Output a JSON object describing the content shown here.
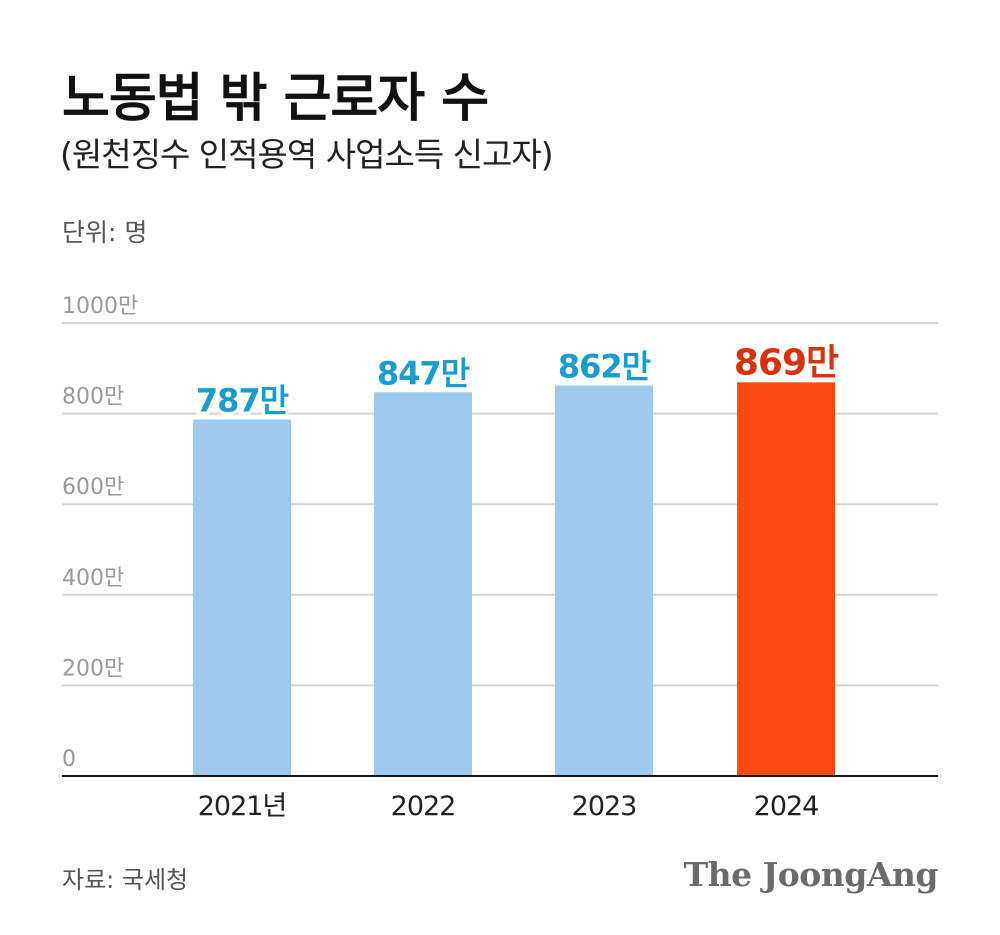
{
  "chart_data": {
    "type": "bar",
    "title": "노동법 밖 근로자 수",
    "subtitle": "(원천징수 인적용역 사업소득 신고자)",
    "unit_label": "단위: 명",
    "categories": [
      "2021년",
      "2022",
      "2023",
      "2024"
    ],
    "values": [
      787,
      847,
      862,
      869
    ],
    "data_labels": [
      "787만",
      "847만",
      "862만",
      "869만"
    ],
    "ylim": [
      0,
      1000
    ],
    "yticks": [
      0,
      200,
      400,
      600,
      800,
      1000
    ],
    "ytick_labels": [
      "0",
      "200만",
      "400만",
      "600만",
      "800만",
      "1000만"
    ],
    "grid": true,
    "bar_colors": [
      "#9ec9ee",
      "#9ec9ee",
      "#9ec9ee",
      "#ff4a14"
    ],
    "label_colors": [
      "#1a9ccd",
      "#1a9ccd",
      "#1a9ccd",
      "#d6330c"
    ],
    "highlight_index": 3
  },
  "footer": {
    "source": "자료: 국세청",
    "logo": "The JoongAng"
  }
}
